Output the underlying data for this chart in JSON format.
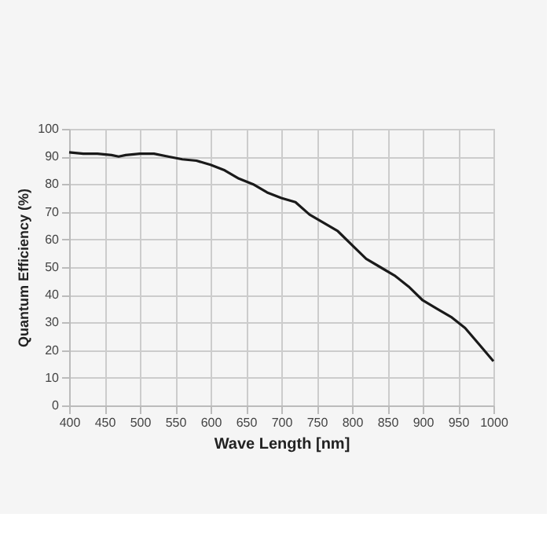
{
  "chart_data": {
    "type": "line",
    "xlabel": "Wave Length [nm]",
    "ylabel": "Quantum Efficiency (%)",
    "x": [
      400,
      420,
      440,
      460,
      470,
      480,
      500,
      520,
      540,
      560,
      580,
      600,
      620,
      640,
      660,
      680,
      700,
      720,
      740,
      760,
      780,
      800,
      820,
      840,
      860,
      880,
      900,
      920,
      940,
      960,
      980,
      1000
    ],
    "series": [
      {
        "color": "#1a1a1a",
        "values": [
          91.5,
          91,
          91,
          90.5,
          90,
          90.5,
          91,
          91,
          90,
          89,
          88.5,
          87,
          85,
          82,
          80,
          77,
          75,
          73.5,
          69,
          66,
          63,
          58,
          53,
          50,
          47,
          43,
          38,
          35,
          32,
          28,
          22,
          16
        ]
      }
    ],
    "xlim": [
      400,
      1000
    ],
    "xticks": [
      400,
      450,
      500,
      550,
      600,
      650,
      700,
      750,
      800,
      850,
      900,
      950,
      1000
    ],
    "ylim": [
      0,
      100
    ],
    "yticks": [
      0,
      10,
      20,
      30,
      40,
      50,
      60,
      70,
      80,
      90,
      100
    ],
    "grid": true,
    "marker": "none",
    "line_style": "solid"
  }
}
